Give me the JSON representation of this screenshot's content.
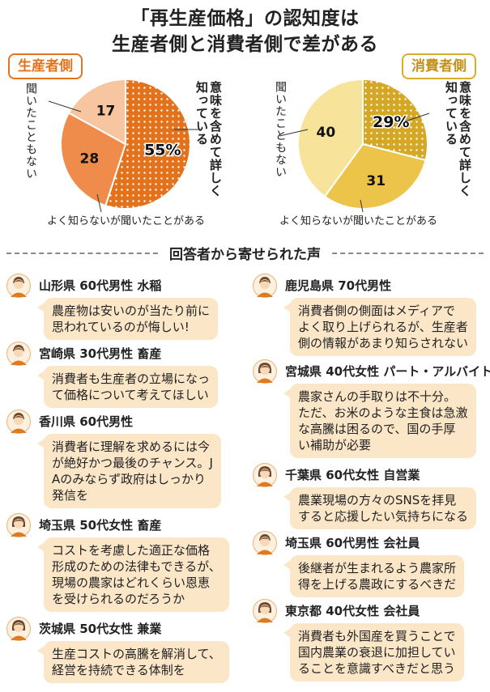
{
  "title_line1": "「再生産価格」の認知度は",
  "title_line2": "生産者側と消費者側で差がある",
  "colors": {
    "producer_main": "#e2731c",
    "producer_mid": "#ef8c4c",
    "producer_light": "#f7c6a0",
    "consumer_main": "#d9ae2a",
    "consumer_mid": "#ecc44a",
    "consumer_light": "#f8e39a",
    "bubble": "#fbe6c8",
    "avatar_hair": "#6b4a2f",
    "avatar_skin": "#f8d8b5",
    "avatar_body": "#e07a1f"
  },
  "legend_labels": {
    "know": "意味を含めて詳しく知っている",
    "heard": "よく知らないが聞いたことがある",
    "never": "聞いたこともない"
  },
  "chart_data": [
    {
      "type": "pie",
      "title": "生産者側",
      "categories": [
        "意味を含めて詳しく知っている",
        "よく知らないが聞いたことがある",
        "聞いたこともない"
      ],
      "values": [
        55,
        28,
        17
      ],
      "value_labels": [
        "55%",
        "28",
        "17"
      ]
    },
    {
      "type": "pie",
      "title": "消費者側",
      "categories": [
        "意味を含めて詳しく知っている",
        "よく知らないが聞いたことがある",
        "聞いたこともない"
      ],
      "values": [
        29,
        31,
        40
      ],
      "value_labels": [
        "29%",
        "31",
        "40"
      ]
    }
  ],
  "voices_heading": "回答者から寄せられた声",
  "voices": [
    {
      "who": "山形県 60代男性 水稲",
      "gender": "m",
      "lines": [
        "農産物は安いのが当たり前に",
        "思われているのが悔しい!"
      ]
    },
    {
      "who": "宮崎県 30代男性 畜産",
      "gender": "m",
      "lines": [
        "消費者も生産者の立場になっ",
        "て価格について考えてほしい"
      ]
    },
    {
      "who": "香川県 60代男性",
      "gender": "m",
      "lines": [
        "消費者に理解を求めるには今",
        "が絶好かつ最後のチャンス。J",
        "Aのみならず政府はしっかり",
        "発信を"
      ]
    },
    {
      "who": "埼玉県 50代女性 畜産",
      "gender": "f",
      "lines": [
        "コストを考慮した適正な価格",
        "形成のための法律もできるが、",
        "現場の農家はどれくらい恩恵",
        "を受けられるのだろうか"
      ]
    },
    {
      "who": "茨城県 50代女性 兼業",
      "gender": "f",
      "lines": [
        "生産コストの高騰を解消して、",
        "経営を持続できる体制を"
      ]
    },
    {
      "who": "鹿児島県 70代男性",
      "gender": "m",
      "lines": [
        "消費者側の側面はメディアで",
        "よく取り上げられるが、生産者",
        "側の情報があまり知らされない"
      ]
    },
    {
      "who": "宮城県 40代女性 パート・アルバイト",
      "gender": "f",
      "lines": [
        "農家さんの手取りは不十分。",
        "ただ、お米のような主食は急激",
        "な高騰は困るので、国の手厚",
        "い補助が必要"
      ]
    },
    {
      "who": "千葉県 60代女性 自営業",
      "gender": "f",
      "lines": [
        "農業現場の方々のSNSを拝見",
        "すると応援したい気持ちになる"
      ]
    },
    {
      "who": "埼玉県 60代男性 会社員",
      "gender": "m",
      "lines": [
        "後継者が生まれるよう農家所",
        "得を上げる農政にするべきだ"
      ]
    },
    {
      "who": "東京都 40代女性 会社員",
      "gender": "f",
      "lines": [
        "消費者も外国産を買うことで",
        "国内農業の衰退に加担してい",
        "ることを意識すべきだと思う"
      ]
    }
  ]
}
